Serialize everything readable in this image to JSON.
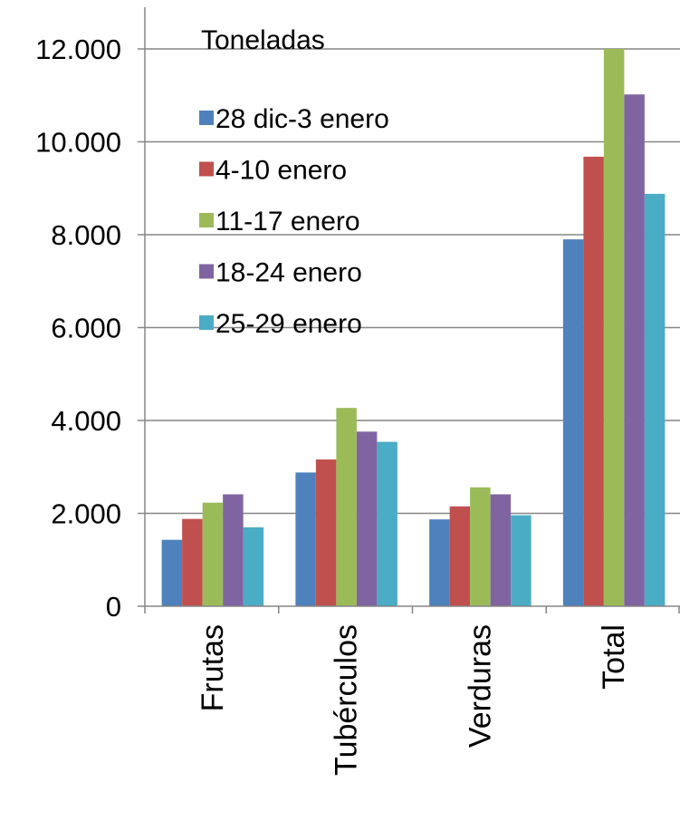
{
  "chart_data": {
    "type": "bar",
    "unit_label": "Toneladas",
    "categories": [
      "Frutas",
      "Tubérculos",
      "Verduras",
      "Total"
    ],
    "series": [
      {
        "name": "28 dic-3 enero",
        "color": "#4F81BD",
        "values": [
          1430,
          2880,
          1870,
          7900
        ]
      },
      {
        "name": "4-10 enero",
        "color": "#C0504D",
        "values": [
          1880,
          3160,
          2150,
          9680
        ]
      },
      {
        "name": "11-17 enero",
        "color": "#9BBB59",
        "values": [
          2230,
          4270,
          2560,
          12000
        ]
      },
      {
        "name": "18-24 enero",
        "color": "#8064A2",
        "values": [
          2410,
          3760,
          2410,
          11020
        ]
      },
      {
        "name": "25-29 enero",
        "color": "#4BACC6",
        "values": [
          1700,
          3540,
          1960,
          8880
        ]
      }
    ],
    "ylim": [
      0,
      12000
    ],
    "yticks": [
      0,
      2000,
      4000,
      6000,
      8000,
      10000,
      12000
    ],
    "ytick_labels": [
      "0",
      "2.000",
      "4.000",
      "6.000",
      "8.000",
      "10.000",
      "12.000"
    ],
    "grid": true,
    "legend_position": "top-left inside plot"
  }
}
